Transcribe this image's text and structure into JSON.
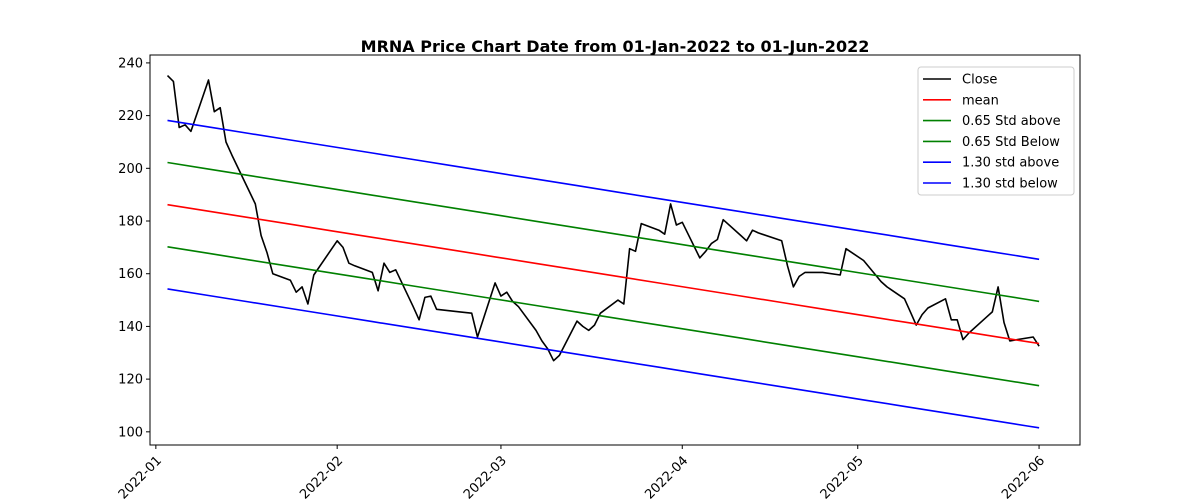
{
  "chart_data": {
    "type": "line",
    "title": "MRNA Price Chart Date from 01-Jan-2022 to 01-Jun-2022",
    "xlabel": "",
    "ylabel": "",
    "x_range": [
      "2021-12-31",
      "2022-06-08"
    ],
    "ylim": [
      95,
      243
    ],
    "yticks": [
      100,
      120,
      140,
      160,
      180,
      200,
      220,
      240
    ],
    "xticks": [
      {
        "date": "2022-01-01",
        "label": "2022-01"
      },
      {
        "date": "2022-02-01",
        "label": "2022-02"
      },
      {
        "date": "2022-03-01",
        "label": "2022-03"
      },
      {
        "date": "2022-04-01",
        "label": "2022-04"
      },
      {
        "date": "2022-05-01",
        "label": "2022-05"
      },
      {
        "date": "2022-06-01",
        "label": "2022-06"
      }
    ],
    "grid": false,
    "legend": "top-right",
    "band": {
      "start": "2022-01-03",
      "end": "2022-06-01",
      "mean_start": 186.2,
      "mean_end": 133.5,
      "std": 24.6,
      "step_days": 7
    },
    "series": [
      {
        "name": "Close",
        "color": "#000000",
        "points": [
          [
            "2022-01-03",
            235.2
          ],
          [
            "2022-01-04",
            233.0
          ],
          [
            "2022-01-05",
            215.5
          ],
          [
            "2022-01-06",
            216.5
          ],
          [
            "2022-01-07",
            214.0
          ],
          [
            "2022-01-10",
            233.5
          ],
          [
            "2022-01-11",
            221.5
          ],
          [
            "2022-01-12",
            223.0
          ],
          [
            "2022-01-13",
            210.0
          ],
          [
            "2022-01-14",
            205.0
          ],
          [
            "2022-01-18",
            186.5
          ],
          [
            "2022-01-19",
            174.5
          ],
          [
            "2022-01-20",
            168.0
          ],
          [
            "2022-01-21",
            160.0
          ],
          [
            "2022-01-24",
            157.5
          ],
          [
            "2022-01-25",
            153.0
          ],
          [
            "2022-01-26",
            155.0
          ],
          [
            "2022-01-27",
            148.5
          ],
          [
            "2022-01-28",
            159.5
          ],
          [
            "2022-02-01",
            172.5
          ],
          [
            "2022-02-02",
            170.0
          ],
          [
            "2022-02-03",
            164.0
          ],
          [
            "2022-02-04",
            163.0
          ],
          [
            "2022-02-07",
            160.5
          ],
          [
            "2022-02-08",
            153.5
          ],
          [
            "2022-02-09",
            164.0
          ],
          [
            "2022-02-10",
            160.5
          ],
          [
            "2022-02-11",
            161.5
          ],
          [
            "2022-02-14",
            147.5
          ],
          [
            "2022-02-15",
            142.5
          ],
          [
            "2022-02-16",
            151.0
          ],
          [
            "2022-02-17",
            151.5
          ],
          [
            "2022-02-18",
            146.5
          ],
          [
            "2022-02-22",
            145.5
          ],
          [
            "2022-02-24",
            145.0
          ],
          [
            "2022-02-25",
            136.0
          ],
          [
            "2022-02-28",
            156.5
          ],
          [
            "2022-03-01",
            151.5
          ],
          [
            "2022-03-02",
            153.0
          ],
          [
            "2022-03-03",
            149.5
          ],
          [
            "2022-03-04",
            147.5
          ],
          [
            "2022-03-07",
            138.5
          ],
          [
            "2022-03-08",
            134.5
          ],
          [
            "2022-03-09",
            131.5
          ],
          [
            "2022-03-10",
            127.0
          ],
          [
            "2022-03-11",
            129.0
          ],
          [
            "2022-03-14",
            142.0
          ],
          [
            "2022-03-15",
            140.0
          ],
          [
            "2022-03-16",
            138.5
          ],
          [
            "2022-03-17",
            140.5
          ],
          [
            "2022-03-18",
            145.0
          ],
          [
            "2022-03-21",
            150.0
          ],
          [
            "2022-03-22",
            148.5
          ],
          [
            "2022-03-23",
            169.5
          ],
          [
            "2022-03-24",
            168.5
          ],
          [
            "2022-03-25",
            179.0
          ],
          [
            "2022-03-28",
            176.5
          ],
          [
            "2022-03-29",
            175.0
          ],
          [
            "2022-03-30",
            186.5
          ],
          [
            "2022-03-31",
            178.5
          ],
          [
            "2022-04-01",
            179.5
          ],
          [
            "2022-04-04",
            166.0
          ],
          [
            "2022-04-05",
            168.5
          ],
          [
            "2022-04-06",
            171.5
          ],
          [
            "2022-04-07",
            173.0
          ],
          [
            "2022-04-08",
            180.5
          ],
          [
            "2022-04-11",
            174.5
          ],
          [
            "2022-04-12",
            172.5
          ],
          [
            "2022-04-13",
            176.5
          ],
          [
            "2022-04-14",
            175.5
          ],
          [
            "2022-04-18",
            172.5
          ],
          [
            "2022-04-19",
            163.0
          ],
          [
            "2022-04-20",
            155.0
          ],
          [
            "2022-04-21",
            159.0
          ],
          [
            "2022-04-22",
            160.5
          ],
          [
            "2022-04-25",
            160.5
          ],
          [
            "2022-04-28",
            159.5
          ],
          [
            "2022-04-29",
            169.5
          ],
          [
            "2022-05-02",
            165.0
          ],
          [
            "2022-05-05",
            157.0
          ],
          [
            "2022-05-06",
            155.0
          ],
          [
            "2022-05-09",
            150.5
          ],
          [
            "2022-05-10",
            145.5
          ],
          [
            "2022-05-11",
            140.5
          ],
          [
            "2022-05-12",
            144.5
          ],
          [
            "2022-05-13",
            147.0
          ],
          [
            "2022-05-16",
            150.5
          ],
          [
            "2022-05-17",
            142.5
          ],
          [
            "2022-05-18",
            142.5
          ],
          [
            "2022-05-19",
            135.0
          ],
          [
            "2022-05-20",
            137.5
          ],
          [
            "2022-05-23",
            143.5
          ],
          [
            "2022-05-24",
            145.5
          ],
          [
            "2022-05-25",
            155.0
          ],
          [
            "2022-05-26",
            141.5
          ],
          [
            "2022-05-27",
            134.5
          ],
          [
            "2022-05-31",
            136.0
          ],
          [
            "2022-06-01",
            132.5
          ]
        ]
      },
      {
        "name": "mean",
        "color": "#ff0000",
        "k": 0
      },
      {
        "name": "0.65 Std above",
        "color": "#008000",
        "k": 0.65
      },
      {
        "name": "0.65 Std Below",
        "color": "#008000",
        "k": -0.65
      },
      {
        "name": "1.30 std above",
        "color": "#0000ff",
        "k": 1.3
      },
      {
        "name": "1.30 std below",
        "color": "#0000ff",
        "k": -1.3
      }
    ]
  }
}
